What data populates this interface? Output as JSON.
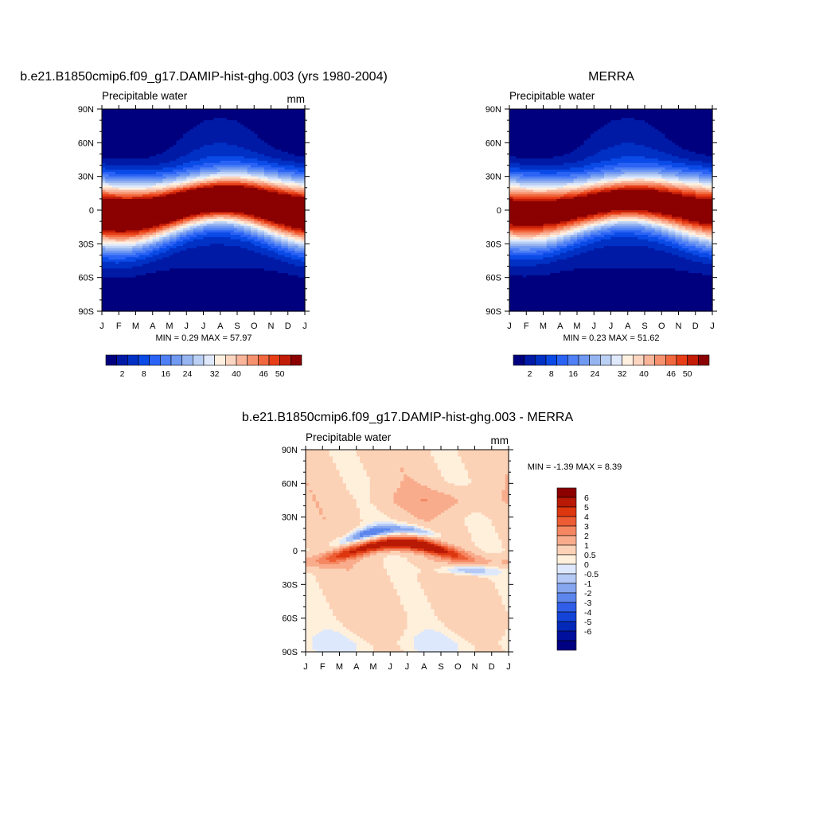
{
  "chart_data": [
    {
      "type": "heatmap",
      "title": "b.e21.B1850cmip6.f09_g17.DAMIP-hist-ghg.003 (yrs 1980-2004)",
      "subtitle": "Precipitable water",
      "units": "mm",
      "x_ticks": [
        "J",
        "F",
        "M",
        "A",
        "M",
        "J",
        "J",
        "A",
        "S",
        "O",
        "N",
        "D",
        "J"
      ],
      "y_ticks": [
        "90N",
        "60N",
        "30N",
        "0",
        "30S",
        "60S",
        "90S"
      ],
      "y_range": [
        -90,
        90
      ],
      "min_max": "MIN =   0.29 MAX =  57.97",
      "min": 0.29,
      "max": 57.97,
      "levels": [
        0,
        2,
        4,
        6,
        8,
        10,
        12,
        14,
        16,
        18,
        20,
        22,
        24,
        26,
        28,
        30,
        32,
        34,
        36,
        38,
        40,
        42,
        44,
        46,
        48,
        50,
        52
      ],
      "colorbar_labels": [
        "2",
        "8",
        "16",
        "24",
        "32",
        "40",
        "46",
        "50"
      ],
      "itcz_peak": 57.97,
      "itcz_lat_jan": -5,
      "itcz_lat_jul": 10
    },
    {
      "type": "heatmap",
      "title": "MERRA",
      "subtitle": "Precipitable water",
      "units": "",
      "x_ticks": [
        "J",
        "F",
        "M",
        "A",
        "M",
        "J",
        "J",
        "A",
        "S",
        "O",
        "N",
        "D",
        "J"
      ],
      "y_ticks": [
        "90N",
        "60N",
        "30N",
        "0",
        "30S",
        "60S",
        "90S"
      ],
      "y_range": [
        -90,
        90
      ],
      "min_max": "MIN =   0.23 MAX =  51.62",
      "min": 0.23,
      "max": 51.62,
      "levels": [
        0,
        2,
        4,
        6,
        8,
        10,
        12,
        14,
        16,
        18,
        20,
        22,
        24,
        26,
        28,
        30,
        32,
        34,
        36,
        38,
        40,
        42,
        44,
        46,
        48,
        50,
        52
      ],
      "colorbar_labels": [
        "2",
        "8",
        "16",
        "24",
        "32",
        "40",
        "46",
        "50"
      ],
      "itcz_peak": 51.62,
      "itcz_lat_jan": -3,
      "itcz_lat_jul": 9
    },
    {
      "type": "heatmap",
      "title": "b.e21.B1850cmip6.f09_g17.DAMIP-hist-ghg.003 - MERRA",
      "subtitle": "Precipitable water",
      "units": "mm",
      "x_ticks": [
        "J",
        "F",
        "M",
        "A",
        "M",
        "J",
        "J",
        "A",
        "S",
        "O",
        "N",
        "D",
        "J"
      ],
      "y_ticks": [
        "90N",
        "60N",
        "30N",
        "0",
        "30S",
        "60S",
        "90S"
      ],
      "y_range": [
        -90,
        90
      ],
      "min_max": "MIN =  -1.39 MAX =   8.39",
      "min": -1.39,
      "max": 8.39,
      "levels": [
        -6,
        -5,
        -4,
        -3,
        -2,
        -1,
        -0.5,
        0,
        0.5,
        1,
        2,
        3,
        4,
        5,
        6
      ],
      "colorbar_labels": [
        "6",
        "5",
        "4",
        "3",
        "2",
        "1",
        "0.5",
        "0",
        "-0.5",
        "-1",
        "-2",
        "-3",
        "-4",
        "-5",
        "-6"
      ]
    }
  ],
  "colors": {
    "sequential": [
      "#00007f",
      "#001aa6",
      "#0030c4",
      "#0a4ae6",
      "#2b63f5",
      "#4f80f5",
      "#7099f2",
      "#96b4f0",
      "#bbd0f5",
      "#dfe9fb",
      "#fff0e0",
      "#fcd5c0",
      "#f9b49a",
      "#f6916f",
      "#f1683f",
      "#e83e17",
      "#c31d08",
      "#8b0000"
    ],
    "diverging": [
      "#000083",
      "#00109d",
      "#0428b8",
      "#1444d7",
      "#305ee8",
      "#5c86ec",
      "#86a6f0",
      "#b4c9f5",
      "#dde8fc",
      "#fff0dc",
      "#fcd2b6",
      "#f9ac8c",
      "#f48762",
      "#ed5c33",
      "#dd3710",
      "#b81a06",
      "#8c0000"
    ]
  }
}
